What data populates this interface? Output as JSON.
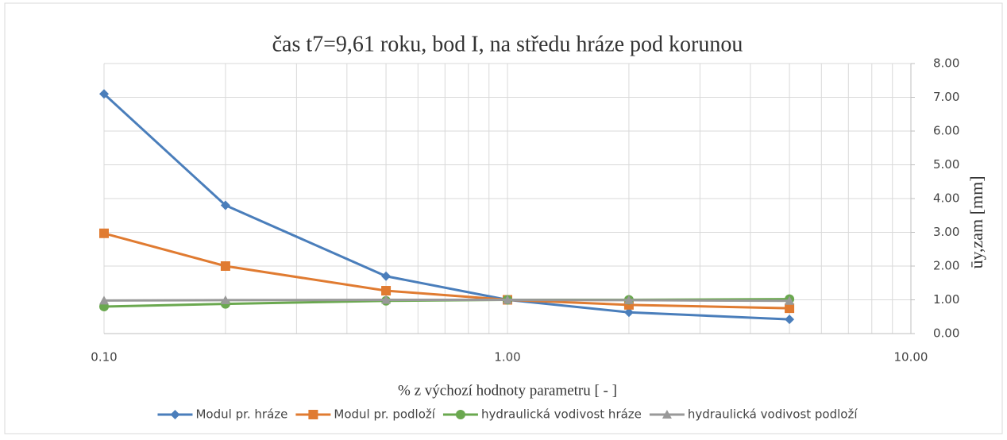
{
  "chart_data": {
    "type": "line",
    "title": "čas t7=9,61 roku, bod I, na středu hráze pod korunou",
    "x_label": "% z výchozí hodnoty parametru [ - ]",
    "y_label": "ūy,zam [mm]",
    "x": [
      0.1,
      0.2,
      0.5,
      1,
      2,
      5
    ],
    "xscale": "log",
    "xlim": [
      0.1,
      10
    ],
    "xticks": [
      {
        "value": 0.1,
        "label": "0.10"
      },
      {
        "value": 1,
        "label": "1.00"
      },
      {
        "value": 10,
        "label": "10.00"
      }
    ],
    "ylim": [
      0,
      8
    ],
    "yticks": [
      {
        "value": 0,
        "label": "0.00"
      },
      {
        "value": 1,
        "label": "1.00"
      },
      {
        "value": 2,
        "label": "2.00"
      },
      {
        "value": 3,
        "label": "3.00"
      },
      {
        "value": 4,
        "label": "4.00"
      },
      {
        "value": 5,
        "label": "5.00"
      },
      {
        "value": 6,
        "label": "6.00"
      },
      {
        "value": 7,
        "label": "7.00"
      },
      {
        "value": 8,
        "label": "8.00"
      }
    ],
    "y_axis_side": "right",
    "grid": true,
    "legend": "bottom",
    "series": [
      {
        "name": "Modul pr. hráze",
        "color": "#4a7ebb",
        "marker": "diamond",
        "values": [
          7.1,
          3.8,
          1.7,
          1.0,
          0.63,
          0.42
        ]
      },
      {
        "name": "Modul pr. podloží",
        "color": "#e07b31",
        "marker": "square",
        "values": [
          2.97,
          2.0,
          1.27,
          1.0,
          0.85,
          0.75
        ]
      },
      {
        "name": "hydraulická vodivost hráze",
        "color": "#6aa84f",
        "marker": "circle",
        "values": [
          0.8,
          0.88,
          0.97,
          1.0,
          1.0,
          1.02
        ]
      },
      {
        "name": "hydraulická vodivost podloží",
        "color": "#999999",
        "marker": "triangle",
        "values": [
          0.98,
          0.99,
          1.0,
          1.0,
          0.99,
          0.97
        ]
      }
    ]
  }
}
